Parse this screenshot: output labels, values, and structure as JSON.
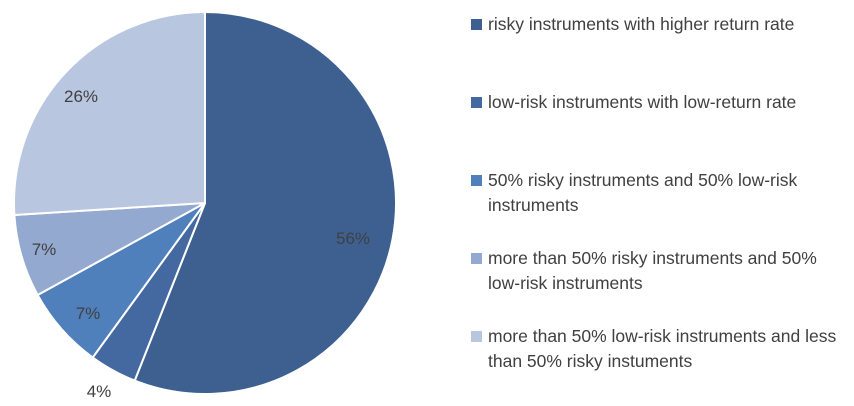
{
  "chart_data": {
    "type": "pie",
    "title": "",
    "start_angle_deg": 0,
    "direction": "clockwise",
    "legend_position": "right",
    "slices": [
      {
        "label": "risky instruments with higher return rate",
        "value": 56,
        "display": "56%",
        "color": "#3d6091"
      },
      {
        "label": "low-risk instruments with low-return rate",
        "value": 4,
        "display": "4%",
        "color": "#4469a0"
      },
      {
        "label": "50% risky instruments and 50% low-risk instruments",
        "value": 7,
        "display": "7%",
        "color": "#4f80bc"
      },
      {
        "label": "more than 50% risky instruments and 50% low-risk instruments",
        "value": 7,
        "display": "7%",
        "color": "#94a9cf"
      },
      {
        "label": "more than 50% low-risk instruments and less than 50% risky instuments",
        "value": 26,
        "display": "26%",
        "color": "#b8c6e0"
      }
    ]
  }
}
